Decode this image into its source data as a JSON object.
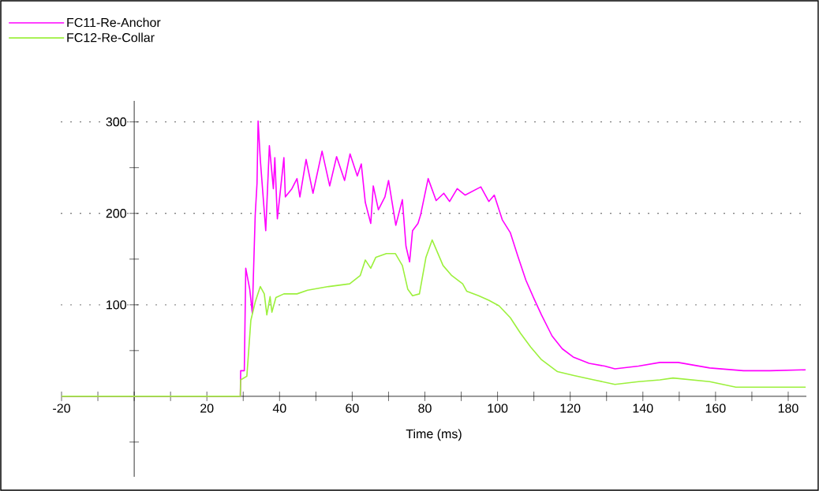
{
  "chart_data": {
    "type": "line",
    "xlabel": "Time (ms)",
    "xlim": [
      -20,
      185
    ],
    "ylim": [
      -88,
      323
    ],
    "xticks": [
      -20,
      {
        "value": -10,
        "label": null
      },
      {
        "value": 0,
        "label": null
      },
      {
        "value": 10,
        "label": null
      },
      20,
      {
        "value": 30,
        "label": null
      },
      40,
      {
        "value": 50,
        "label": null
      },
      60,
      {
        "value": 70,
        "label": null
      },
      80,
      {
        "value": 90,
        "label": null
      },
      100,
      {
        "value": 110,
        "label": null
      },
      120,
      {
        "value": 130,
        "label": null
      },
      140,
      {
        "value": 150,
        "label": null
      },
      160,
      {
        "value": 170,
        "label": null
      },
      180
    ],
    "yticks": [
      {
        "value": -50,
        "label": null
      },
      {
        "value": 0,
        "label": null
      },
      {
        "value": 50,
        "label": null
      },
      100,
      {
        "value": 150,
        "label": null
      },
      200,
      {
        "value": 250,
        "label": null
      },
      300
    ],
    "grid": "y",
    "legend": "top left",
    "marker": "none",
    "line_style": "solid",
    "series": [
      {
        "name": "FC11-Re-Anchor",
        "color": "#ff00ff",
        "x": [
          -20,
          29.2,
          29.3,
          30.3,
          30.7,
          31.8,
          32.5,
          33.3,
          33.8,
          34.1,
          34.7,
          36.2,
          37.2,
          38.3,
          38.7,
          39.4,
          41.2,
          41.6,
          43.4,
          44.8,
          45.6,
          47.3,
          49.2,
          51.7,
          53.8,
          55.7,
          57.9,
          59.4,
          61.4,
          62.5,
          63.6,
          65.1,
          65.8,
          67.2,
          69,
          70,
          72,
          73.8,
          74.8,
          75.8,
          76.6,
          78.1,
          78.8,
          80.9,
          83.1,
          85.2,
          86.8,
          88.9,
          91.1,
          95.4,
          97.6,
          99.1,
          101.3,
          103.5,
          105.6,
          107.8,
          110,
          112.1,
          115,
          117.8,
          120.8,
          125.2,
          129.5,
          132.3,
          138.8,
          144.7,
          149.7,
          158.4,
          167.7,
          175,
          184.8
        ],
        "values": [
          0,
          0,
          28,
          28,
          140,
          117,
          91,
          198,
          233,
          301,
          259,
          181,
          274,
          227,
          261,
          194,
          261,
          218,
          227,
          238,
          218,
          259,
          222,
          268,
          230,
          262,
          236,
          265,
          241,
          254,
          212,
          189,
          230,
          204,
          218,
          236,
          187,
          215,
          164,
          147,
          181,
          189,
          198,
          238,
          214,
          222,
          213,
          227,
          220,
          229,
          213,
          220,
          193,
          179,
          153,
          127,
          107,
          89,
          66,
          52,
          43,
          36,
          33,
          30,
          33,
          37,
          37,
          31,
          28,
          28,
          29
        ]
      },
      {
        "name": "FC12-Re-Collar",
        "color": "#9cf03c",
        "x": [
          -20,
          29.2,
          29.3,
          31,
          32.1,
          33.3,
          34.7,
          35.8,
          36.5,
          37.4,
          37.9,
          39,
          41.2,
          44.8,
          47.7,
          53.5,
          59.3,
          62.2,
          63.6,
          65.1,
          66.5,
          69.4,
          71.9,
          73.8,
          75.3,
          76.6,
          78.5,
          80.3,
          82,
          85,
          87.4,
          90.4,
          91.5,
          94.8,
          97.6,
          100.4,
          103.5,
          106.3,
          109.1,
          112.1,
          116.5,
          120.8,
          126.5,
          132.3,
          138.8,
          144.7,
          148.3,
          158.4,
          165.6,
          175,
          184.8
        ],
        "values": [
          0,
          0,
          18,
          22,
          83,
          103,
          120,
          112,
          89,
          109,
          92,
          108,
          112,
          112,
          116,
          120,
          123,
          132,
          149,
          140,
          152,
          156,
          156,
          143,
          117,
          110,
          112,
          152,
          171,
          143,
          132,
          123,
          115,
          110,
          105,
          99,
          86,
          69,
          54,
          40,
          27,
          23,
          18,
          13,
          16,
          18,
          20,
          16,
          10,
          10,
          10
        ]
      }
    ]
  }
}
